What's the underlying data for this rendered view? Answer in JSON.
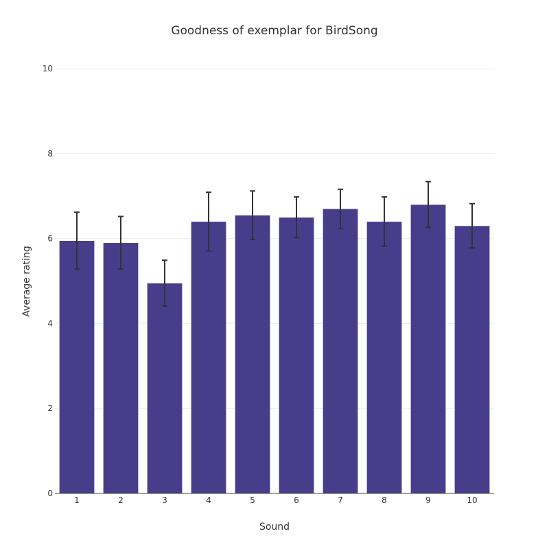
{
  "chart_data": {
    "type": "bar",
    "title": "Goodness of exemplar for BirdSong",
    "xlabel": "Sound",
    "ylabel": "Average rating",
    "categories": [
      "1",
      "2",
      "3",
      "4",
      "5",
      "6",
      "7",
      "8",
      "9",
      "10"
    ],
    "values": [
      5.95,
      5.9,
      4.95,
      6.4,
      6.55,
      6.5,
      6.7,
      6.4,
      6.8,
      6.3
    ],
    "error": [
      0.67,
      0.62,
      0.54,
      0.69,
      0.57,
      0.48,
      0.46,
      0.58,
      0.54,
      0.52
    ],
    "ylim": [
      0,
      10
    ],
    "yticks": [
      0,
      2,
      4,
      6,
      8,
      10
    ],
    "grid": true,
    "bar_color": "#483d8b",
    "error_color": "#333333"
  }
}
